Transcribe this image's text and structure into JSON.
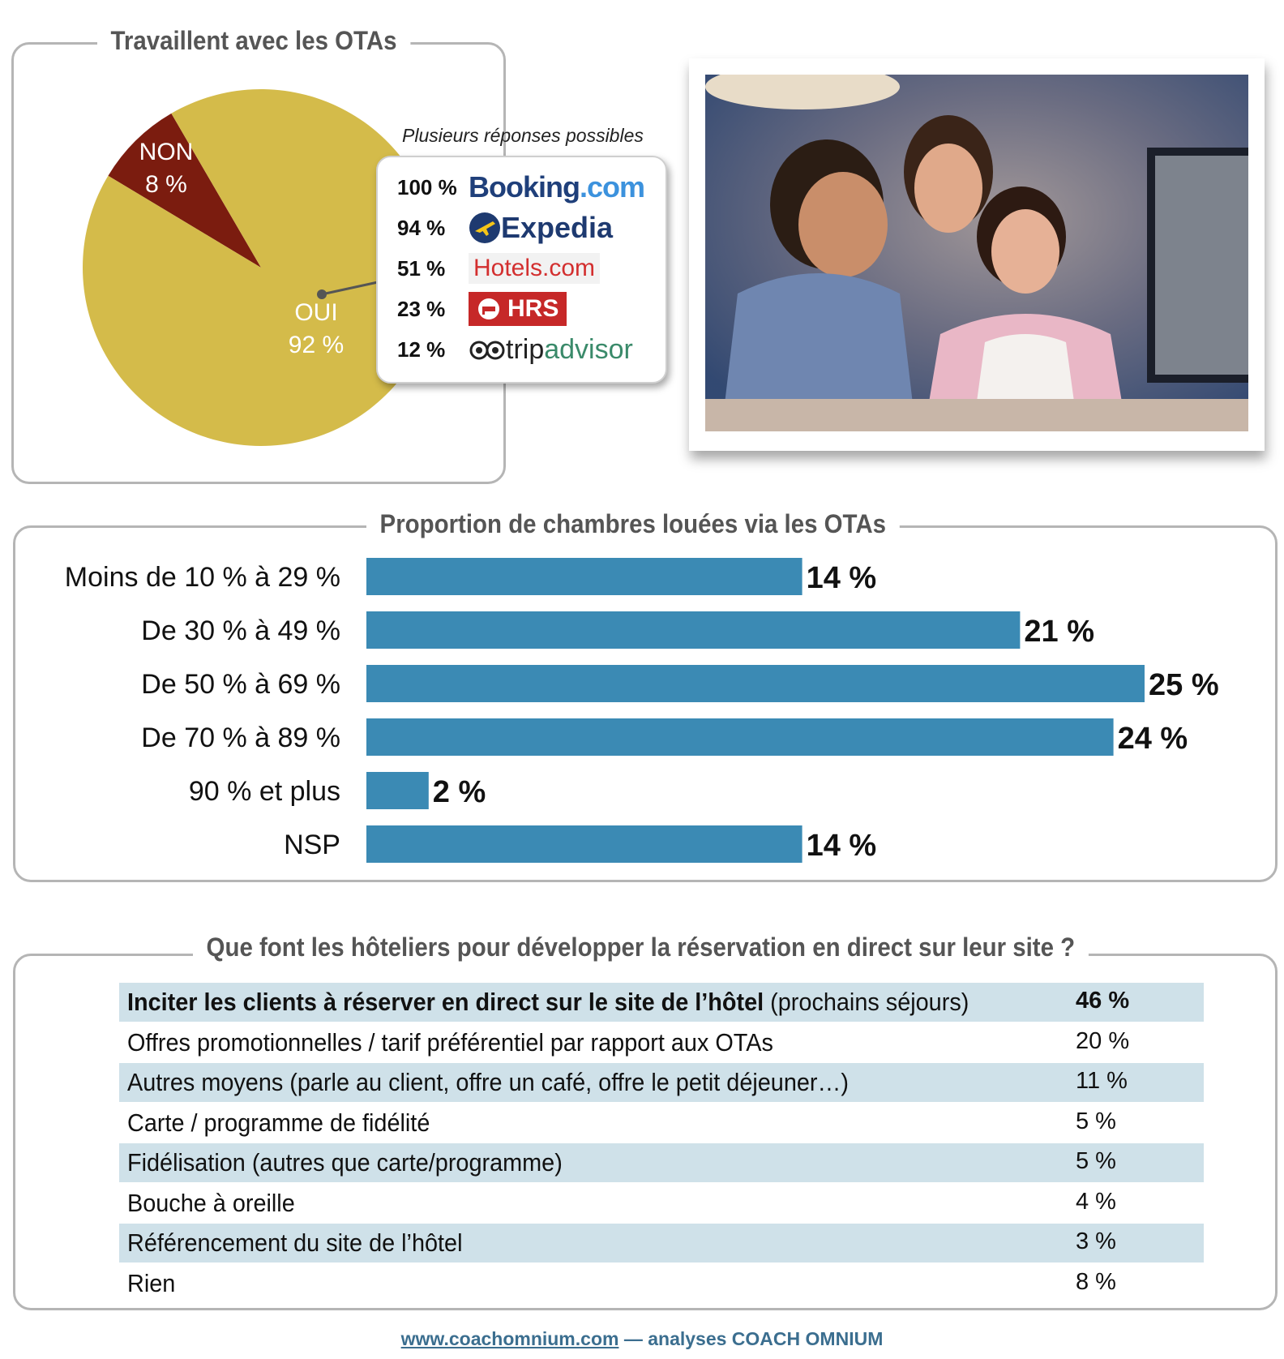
{
  "colors": {
    "pie_oui": "#d4bb4a",
    "pie_non": "#7b1c0f",
    "bar": "#3b8ab4",
    "row_shade": "#cfe1e9",
    "frame": "#b5b5b5",
    "title": "#555555",
    "footer": "#3b6e8f"
  },
  "pie_section": {
    "title": "Travaillent avec les OTAs"
  },
  "ota_card": {
    "note": "Plusieurs réponses possibles",
    "items": [
      {
        "pct": "100 %",
        "brand_a": "Booking",
        "brand_dot": ".",
        "brand_b": "com",
        "logo": "booking-logo"
      },
      {
        "pct": "94 %",
        "brand_a": "Expedia",
        "logo": "expedia-logo"
      },
      {
        "pct": "51 %",
        "brand_a": "Hotels.com",
        "logo": "hotels-com-logo"
      },
      {
        "pct": "23 %",
        "brand_a": "HRS",
        "logo": "hrs-logo"
      },
      {
        "pct": "12 %",
        "brand_a": "trip",
        "brand_b": "advisor",
        "logo": "tripadvisor-logo"
      }
    ]
  },
  "photo": {
    "subject": "three people looking at a computer screen at night"
  },
  "bar_section": {
    "title": "Proportion de chambres louées via les OTAs"
  },
  "table_section": {
    "title": "Que font les hôteliers pour développer la réservation en direct sur leur site ?",
    "rows": [
      {
        "label_bold": "Inciter les clients à réserver en direct sur le site de l’hôtel",
        "label": " (prochains séjours)",
        "value": "46  %",
        "shaded": true,
        "bold_value": true
      },
      {
        "label_bold": "",
        "label": "Offres promotionnelles / tarif préférentiel par rapport aux OTAs",
        "value": "20 %",
        "shaded": false
      },
      {
        "label_bold": "",
        "label": "Autres moyens (parle au client, offre un café, offre le petit déjeuner…)",
        "value": "11 %",
        "shaded": true
      },
      {
        "label_bold": "",
        "label": "Carte / programme de fidélité",
        "value": "5 %",
        "shaded": false
      },
      {
        "label_bold": "",
        "label": "Fidélisation (autres que carte/programme)",
        "value": "5 %",
        "shaded": true
      },
      {
        "label_bold": "",
        "label": "Bouche à oreille",
        "value": "4 %",
        "shaded": false
      },
      {
        "label_bold": "",
        "label": "Référencement du site de l’hôtel",
        "value": "3 %",
        "shaded": true
      },
      {
        "label_bold": "",
        "label": "Rien",
        "value": "8 %",
        "shaded": false
      }
    ]
  },
  "footer": {
    "link": "www.coachomnium.com",
    "text": " — analyses COACH OMNIUM"
  },
  "chart_data": [
    {
      "type": "pie",
      "title": "Travaillent avec les OTAs",
      "slices": [
        {
          "label": "OUI",
          "value": 92,
          "value_label": "92 %",
          "color": "#d4bb4a"
        },
        {
          "label": "NON",
          "value": 8,
          "value_label": "8 %",
          "color": "#7b1c0f"
        }
      ]
    },
    {
      "type": "bar",
      "orientation": "horizontal",
      "title": "Proportion de chambres louées via les OTAs",
      "categories": [
        "Moins de 10 % à 29 %",
        "De 30 % à 49 %",
        "De 50 % à 69 %",
        "De 70 % à 89 %",
        "90 % et plus",
        "NSP"
      ],
      "values": [
        14,
        21,
        25,
        24,
        2,
        14
      ],
      "value_labels": [
        "14 %",
        "21 %",
        "25 %",
        "24 %",
        "2 %",
        "14 %"
      ],
      "xlim": [
        0,
        25
      ],
      "grid": false,
      "color": "#3b8ab4"
    },
    {
      "type": "bar",
      "orientation": "horizontal",
      "title": "",
      "categories": [
        "Booking.com",
        "Expedia",
        "Hotels.com",
        "HRS",
        "tripadvisor"
      ],
      "values": [
        100,
        94,
        51,
        23,
        12
      ],
      "value_labels": [
        "100 %",
        "94 %",
        "51 %",
        "23 %",
        "12 %"
      ]
    }
  ]
}
